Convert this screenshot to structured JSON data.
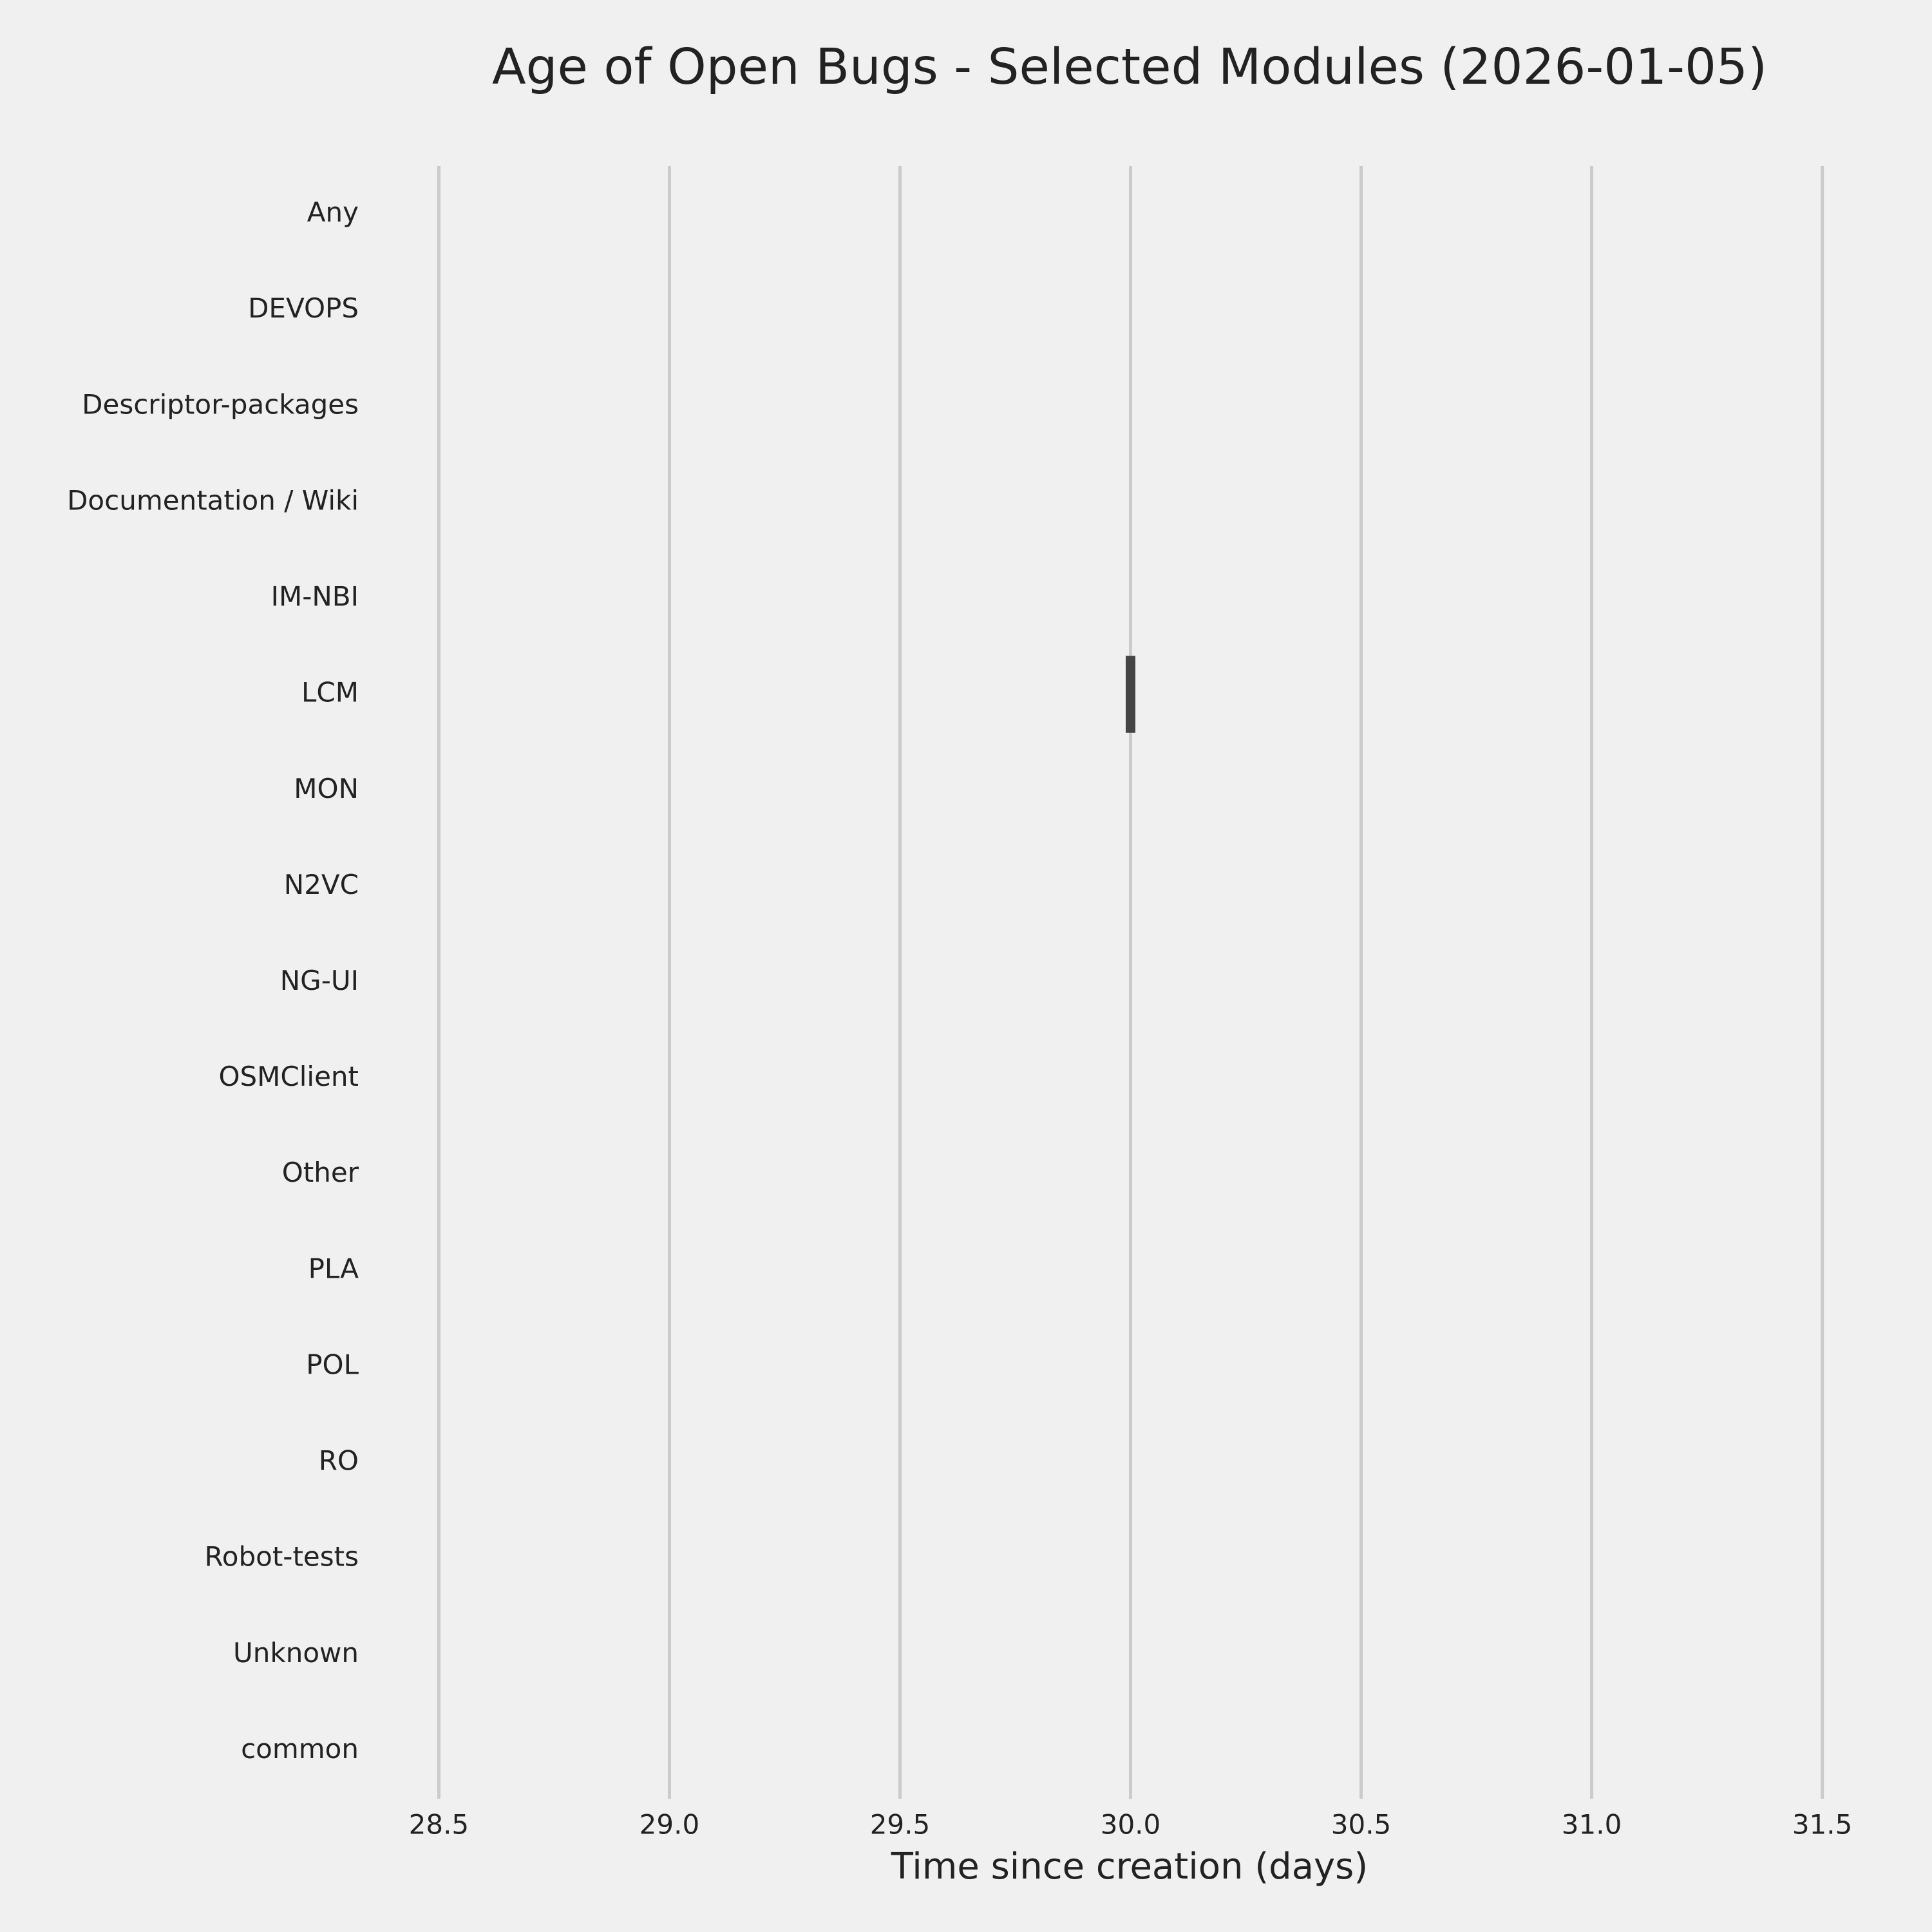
{
  "chart_data": {
    "type": "box",
    "title": "Age of Open Bugs - Selected Modules (2026-01-05)",
    "x_label": "Time since creation (days)",
    "categories": [
      "Any",
      "DEVOPS",
      "Descriptor-packages",
      "Documentation / Wiki",
      "IM-NBI",
      "LCM",
      "MON",
      "N2VC",
      "NG-UI",
      "OSMClient",
      "Other",
      "PLA",
      "POL",
      "RO",
      "Robot-tests",
      "Unknown",
      "common"
    ],
    "values": [
      null,
      null,
      null,
      null,
      null,
      30,
      null,
      null,
      null,
      null,
      null,
      null,
      null,
      null,
      null,
      null,
      null
    ],
    "color": "#444444",
    "xlim": [
      28.35,
      31.65
    ],
    "xticks": [
      28.5,
      {
        "value": 29,
        "label": "29.0"
      },
      29.5,
      {
        "value": 30,
        "label": "30.0"
      },
      30.5,
      {
        "value": 31,
        "label": "31.0"
      },
      31.5
    ],
    "grid": true
  }
}
